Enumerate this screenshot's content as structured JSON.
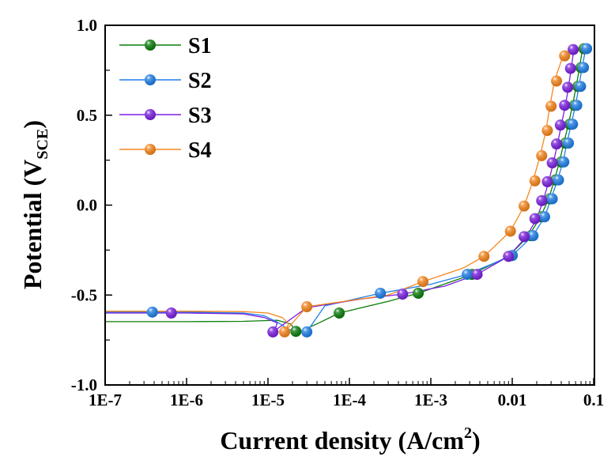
{
  "chart_data": {
    "type": "line",
    "title": "",
    "xlabel": "Current density (A/cm",
    "xlabel_sup": "2",
    "xlabel_end": ")",
    "ylabel": "Potential (V",
    "ylabel_sub": "SCE",
    "ylabel_end": ")",
    "xscale": "log",
    "xlim": [
      1e-07,
      0.12
    ],
    "ylim": [
      -1.0,
      1.0
    ],
    "x_ticks": [
      {
        "value": 1e-07,
        "label": "1E-7"
      },
      {
        "value": 1e-06,
        "label": "1E-6"
      },
      {
        "value": 1e-05,
        "label": "1E-5"
      },
      {
        "value": 0.0001,
        "label": "1E-4"
      },
      {
        "value": 0.001,
        "label": "1E-3"
      },
      {
        "value": 0.01,
        "label": "0.01"
      },
      {
        "value": 0.1,
        "label": "0.1"
      }
    ],
    "y_ticks": [
      {
        "value": 1.0,
        "label": "1.0"
      },
      {
        "value": 0.5,
        "label": "0.5"
      },
      {
        "value": 0.0,
        "label": "0.0"
      },
      {
        "value": -0.5,
        "label": "-0.5"
      },
      {
        "value": -1.0,
        "label": "-1.0"
      }
    ],
    "y_minor_ticks": [
      0.75,
      0.25,
      -0.25,
      -0.75
    ],
    "grid": false,
    "legend_position": "top-left",
    "series": [
      {
        "name": "S1",
        "color": "#0a7d0a",
        "curve": [
          [
            1e-07,
            -0.648
          ],
          [
            1e-06,
            -0.648
          ],
          [
            5e-06,
            -0.646
          ],
          [
            1.3e-05,
            -0.64
          ],
          [
            1.9e-05,
            -0.66
          ],
          [
            2.2e-05,
            -0.7
          ],
          [
            2.5e-05,
            -0.702
          ],
          [
            4e-05,
            -0.66
          ],
          [
            7.5e-05,
            -0.6
          ],
          [
            0.0003,
            -0.535
          ],
          [
            0.0007,
            -0.49
          ],
          [
            0.003,
            -0.39
          ],
          [
            0.009,
            -0.285
          ],
          [
            0.016,
            -0.17
          ],
          [
            0.022,
            -0.07
          ],
          [
            0.028,
            0.035
          ],
          [
            0.033,
            0.14
          ],
          [
            0.038,
            0.24
          ],
          [
            0.043,
            0.345
          ],
          [
            0.049,
            0.45
          ],
          [
            0.055,
            0.555
          ],
          [
            0.061,
            0.66
          ],
          [
            0.067,
            0.765
          ],
          [
            0.073,
            0.87
          ]
        ],
        "markers": [
          [
            2.2e-05,
            -0.702
          ],
          [
            7.5e-05,
            -0.6
          ],
          [
            0.0007,
            -0.49
          ],
          [
            0.0032,
            -0.385
          ],
          [
            0.01,
            -0.28
          ],
          [
            0.017,
            -0.17
          ],
          [
            0.023,
            -0.065
          ],
          [
            0.029,
            0.035
          ],
          [
            0.034,
            0.14
          ],
          [
            0.04,
            0.24
          ],
          [
            0.045,
            0.345
          ],
          [
            0.051,
            0.45
          ],
          [
            0.058,
            0.555
          ],
          [
            0.064,
            0.66
          ],
          [
            0.07,
            0.765
          ],
          [
            0.076,
            0.87
          ]
        ]
      },
      {
        "name": "S2",
        "color": "#1e7fe8",
        "curve": [
          [
            1e-07,
            -0.595
          ],
          [
            1e-06,
            -0.595
          ],
          [
            5e-06,
            -0.6
          ],
          [
            9e-06,
            -0.615
          ],
          [
            1.3e-05,
            -0.65
          ],
          [
            1.8e-05,
            -0.69
          ],
          [
            2.3e-05,
            -0.705
          ],
          [
            3e-05,
            -0.705
          ],
          [
            5e-05,
            -0.56
          ],
          [
            0.00024,
            -0.49
          ],
          [
            0.001,
            -0.44
          ],
          [
            0.0028,
            -0.385
          ],
          [
            0.01,
            -0.28
          ],
          [
            0.018,
            -0.17
          ],
          [
            0.025,
            -0.065
          ],
          [
            0.03,
            0.035
          ],
          [
            0.036,
            0.14
          ],
          [
            0.042,
            0.24
          ],
          [
            0.047,
            0.345
          ],
          [
            0.053,
            0.45
          ],
          [
            0.06,
            0.555
          ],
          [
            0.066,
            0.66
          ],
          [
            0.072,
            0.765
          ],
          [
            0.08,
            0.87
          ]
        ],
        "markers": [
          [
            3e-05,
            -0.705
          ],
          [
            3.8e-07,
            -0.595
          ],
          [
            0.00024,
            -0.49
          ],
          [
            0.0028,
            -0.385
          ],
          [
            0.01,
            -0.28
          ],
          [
            0.018,
            -0.17
          ],
          [
            0.025,
            -0.065
          ],
          [
            0.031,
            0.035
          ],
          [
            0.037,
            0.14
          ],
          [
            0.043,
            0.24
          ],
          [
            0.049,
            0.345
          ],
          [
            0.055,
            0.45
          ],
          [
            0.062,
            0.555
          ],
          [
            0.069,
            0.66
          ],
          [
            0.075,
            0.765
          ],
          [
            0.082,
            0.87
          ]
        ]
      },
      {
        "name": "S3",
        "color": "#7a1fe0",
        "curve": [
          [
            1e-07,
            -0.6
          ],
          [
            1e-06,
            -0.6
          ],
          [
            5e-06,
            -0.605
          ],
          [
            9e-06,
            -0.625
          ],
          [
            1.3e-05,
            -0.655
          ],
          [
            1.2e-05,
            -0.7
          ],
          [
            1.15e-05,
            -0.705
          ],
          [
            3e-05,
            -0.57
          ],
          [
            0.00015,
            -0.52
          ],
          [
            0.00045,
            -0.495
          ],
          [
            0.0015,
            -0.45
          ],
          [
            0.0037,
            -0.385
          ],
          [
            0.009,
            -0.285
          ],
          [
            0.015,
            -0.175
          ],
          [
            0.02,
            -0.075
          ],
          [
            0.024,
            0.025
          ],
          [
            0.028,
            0.13
          ],
          [
            0.032,
            0.235
          ],
          [
            0.036,
            0.34
          ],
          [
            0.04,
            0.445
          ],
          [
            0.045,
            0.555
          ],
          [
            0.049,
            0.655
          ],
          [
            0.053,
            0.76
          ],
          [
            0.057,
            0.865
          ]
        ],
        "markers": [
          [
            1.15e-05,
            -0.705
          ],
          [
            6.5e-07,
            -0.6
          ],
          [
            0.00045,
            -0.495
          ],
          [
            0.0037,
            -0.385
          ],
          [
            0.009,
            -0.285
          ],
          [
            0.014,
            -0.175
          ],
          [
            0.019,
            -0.075
          ],
          [
            0.023,
            0.025
          ],
          [
            0.027,
            0.13
          ],
          [
            0.031,
            0.235
          ],
          [
            0.035,
            0.34
          ],
          [
            0.039,
            0.445
          ],
          [
            0.044,
            0.555
          ],
          [
            0.048,
            0.655
          ],
          [
            0.052,
            0.76
          ],
          [
            0.056,
            0.865
          ]
        ]
      },
      {
        "name": "S4",
        "color": "#f7861c",
        "curve": [
          [
            1e-07,
            -0.59
          ],
          [
            1e-06,
            -0.59
          ],
          [
            5e-06,
            -0.592
          ],
          [
            1e-05,
            -0.6
          ],
          [
            1.5e-05,
            -0.625
          ],
          [
            1.8e-05,
            -0.66
          ],
          [
            1.6e-05,
            -0.705
          ],
          [
            3e-05,
            -0.565
          ],
          [
            0.0003,
            -0.5
          ],
          [
            0.0008,
            -0.425
          ],
          [
            0.0025,
            -0.35
          ],
          [
            0.0045,
            -0.285
          ],
          [
            0.0095,
            -0.145
          ],
          [
            0.014,
            -0.005
          ],
          [
            0.018,
            0.135
          ],
          [
            0.022,
            0.275
          ],
          [
            0.026,
            0.415
          ],
          [
            0.029,
            0.55
          ],
          [
            0.033,
            0.69
          ],
          [
            0.042,
            0.83
          ]
        ],
        "markers": [
          [
            1.6e-05,
            -0.705
          ],
          [
            3e-05,
            -0.565
          ],
          [
            0.0008,
            -0.425
          ],
          [
            0.0045,
            -0.285
          ],
          [
            0.0095,
            -0.145
          ],
          [
            0.014,
            -0.005
          ],
          [
            0.019,
            0.135
          ],
          [
            0.023,
            0.275
          ],
          [
            0.027,
            0.415
          ],
          [
            0.03,
            0.55
          ],
          [
            0.035,
            0.69
          ],
          [
            0.044,
            0.83
          ]
        ]
      }
    ]
  }
}
